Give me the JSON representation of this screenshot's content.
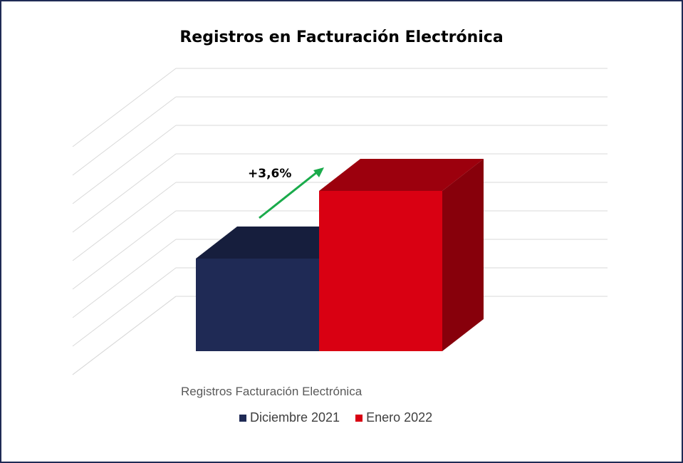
{
  "chart_data": {
    "type": "bar",
    "title": "Registros en Facturación Electrónica",
    "categories": [
      "Registros Facturación Electrónica"
    ],
    "series": [
      {
        "name": "Diciembre 2021",
        "values": [
          100
        ],
        "color": "#1f2a55"
      },
      {
        "name": "Enero 2022",
        "values": [
          103.6
        ],
        "color": "#d90012"
      }
    ],
    "annotation": {
      "text": "+3,6%",
      "arrow_color": "#1aab4b"
    },
    "ylim": [
      50,
      110
    ],
    "grid": true,
    "legend_position": "bottom",
    "style": "3d-clustered"
  }
}
